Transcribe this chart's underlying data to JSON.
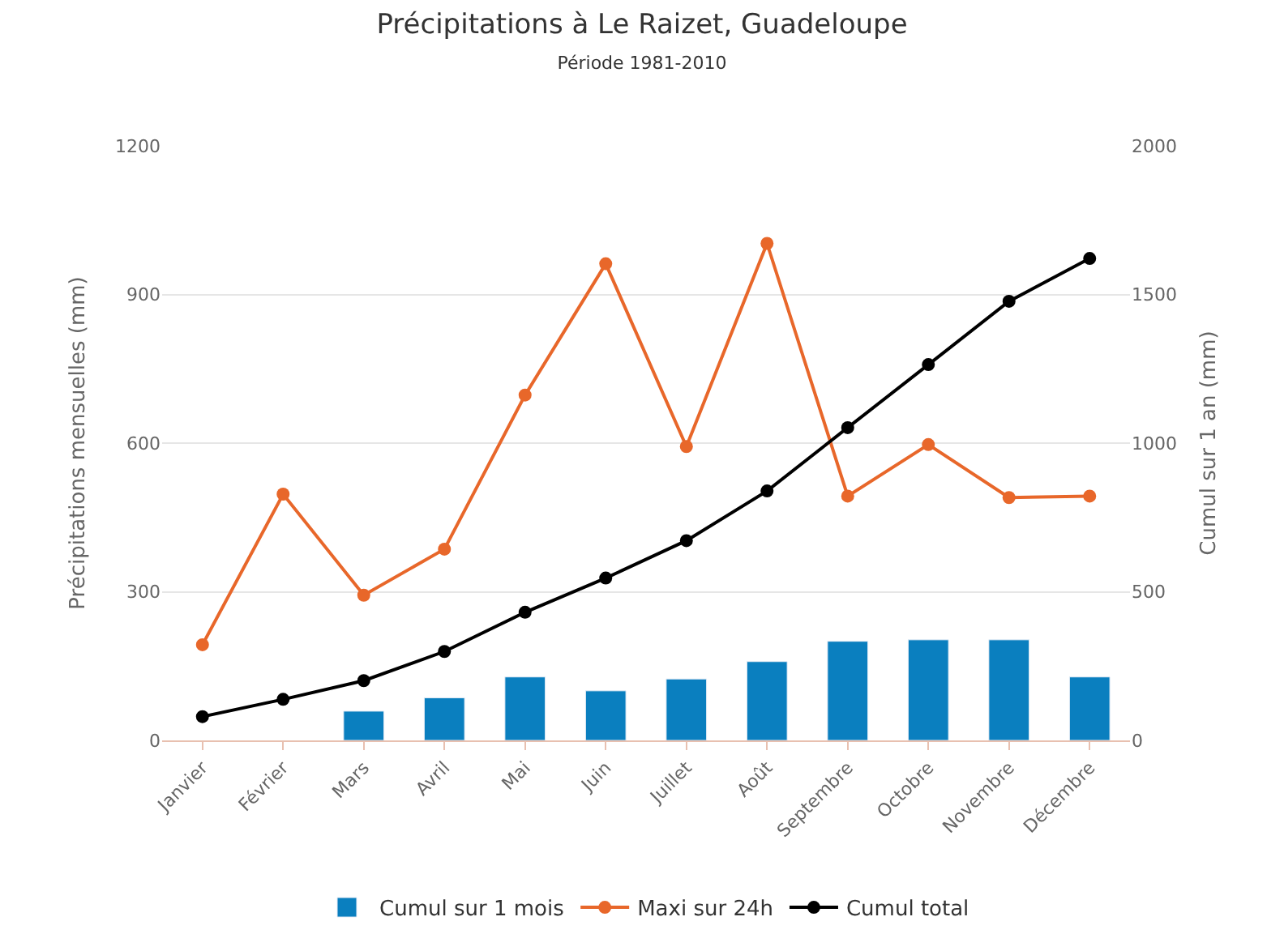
{
  "chart_data": {
    "type": "bar",
    "title": "Précipitations à Le Raizet, Guadeloupe",
    "subtitle": "Période 1981-2010",
    "ylabel": "Précipitations mensuelles (mm)",
    "y2label": "Cumul sur 1 an (mm)",
    "categories": [
      "Janvier",
      "Février",
      "Mars",
      "Avril",
      "Mai",
      "Juin",
      "Juillet",
      "Août",
      "Septembre",
      "Octobre",
      "Novembre",
      "Décembre"
    ],
    "series": [
      {
        "name": "Cumul sur 1 mois",
        "color": "#0a7fbf",
        "values": [
          null,
          null,
          59,
          86,
          128,
          100,
          124,
          159,
          200,
          203,
          203,
          128
        ]
      },
      {
        "name": "Maxi sur 24h",
        "type": "line",
        "color": "#e8672a",
        "values": [
          193,
          497,
          293,
          386,
          697,
          962,
          593,
          1003,
          493,
          597,
          490,
          493
        ]
      },
      {
        "name": "Cumul total",
        "type": "line",
        "color": "#000000",
        "axis": "y2",
        "values": [
          80,
          138,
          201,
          299,
          431,
          546,
          672,
          839,
          1052,
          1264,
          1477,
          1621
        ]
      }
    ],
    "ylim": [
      0,
      1200
    ],
    "yticks": [
      0,
      300,
      600,
      900,
      1200
    ],
    "y2lim": [
      0,
      2000
    ],
    "y2ticks": [
      0,
      500,
      1000,
      1500,
      2000
    ],
    "grid": "y",
    "legend": "bottom",
    "marker": "circle",
    "line_style": "solid"
  }
}
